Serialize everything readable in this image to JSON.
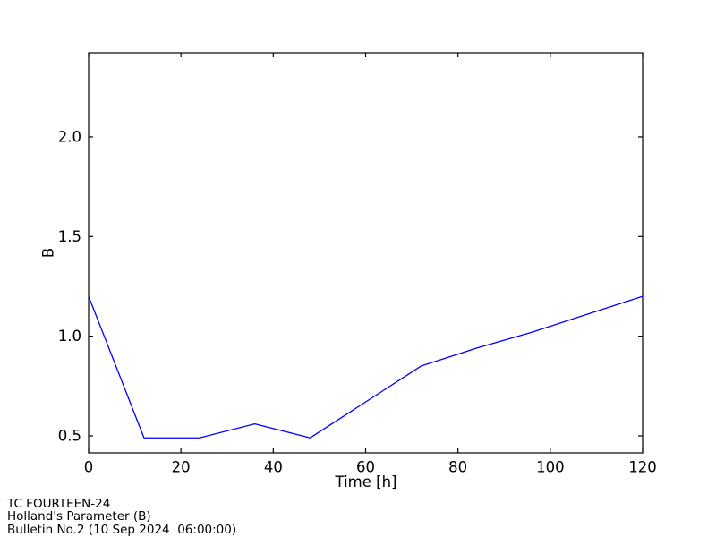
{
  "chart_data": {
    "type": "line",
    "title": "",
    "xlabel": "Time [h]",
    "ylabel": "B",
    "x": [
      0,
      12,
      24,
      36,
      48,
      60,
      72,
      84,
      96,
      108,
      120
    ],
    "series": [
      {
        "name": "Holland's Parameter (B)",
        "color": "#0000ff",
        "values": [
          1.2,
          0.49,
          0.49,
          0.56,
          0.49,
          0.67,
          0.85,
          0.94,
          1.02,
          1.11,
          1.2
        ]
      }
    ],
    "xlim": [
      0,
      120
    ],
    "ylim": [
      0.41,
      2.42
    ],
    "x_ticks": [
      0,
      20,
      40,
      60,
      80,
      100,
      120
    ],
    "y_ticks": [
      0.5,
      1.0,
      1.5,
      2.0
    ],
    "grid": false,
    "legend": "none"
  },
  "footer": {
    "line1": "TC FOURTEEN-24",
    "line2": "Holland's Parameter (B)",
    "line3": "Bulletin No.2 (10 Sep 2024  06:00:00)"
  },
  "colors": {
    "line": "#0000ff",
    "axis": "#000000",
    "background": "#ffffff"
  }
}
